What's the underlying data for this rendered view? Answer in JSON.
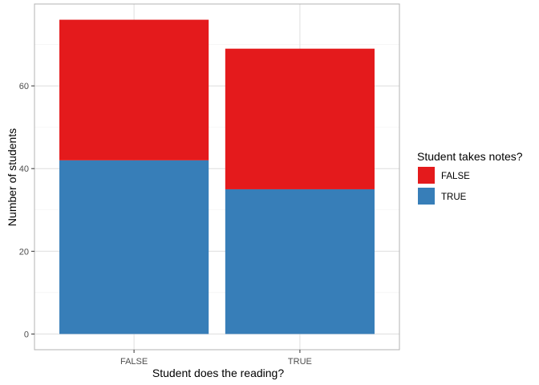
{
  "chart_data": {
    "type": "bar",
    "stacked": true,
    "categories": [
      "FALSE",
      "TRUE"
    ],
    "series": [
      {
        "name": "FALSE",
        "values": [
          34,
          34
        ],
        "color": "#E41A1C"
      },
      {
        "name": "TRUE",
        "values": [
          42,
          35
        ],
        "color": "#377EB8"
      }
    ],
    "xlabel": "Student does the reading?",
    "ylabel": "Number of students",
    "ylim": [
      -3.8,
      79.8
    ],
    "yticks": [
      0,
      20,
      40,
      60
    ],
    "grid": true,
    "legend": {
      "title": "Student takes notes?",
      "placement": "right"
    }
  }
}
